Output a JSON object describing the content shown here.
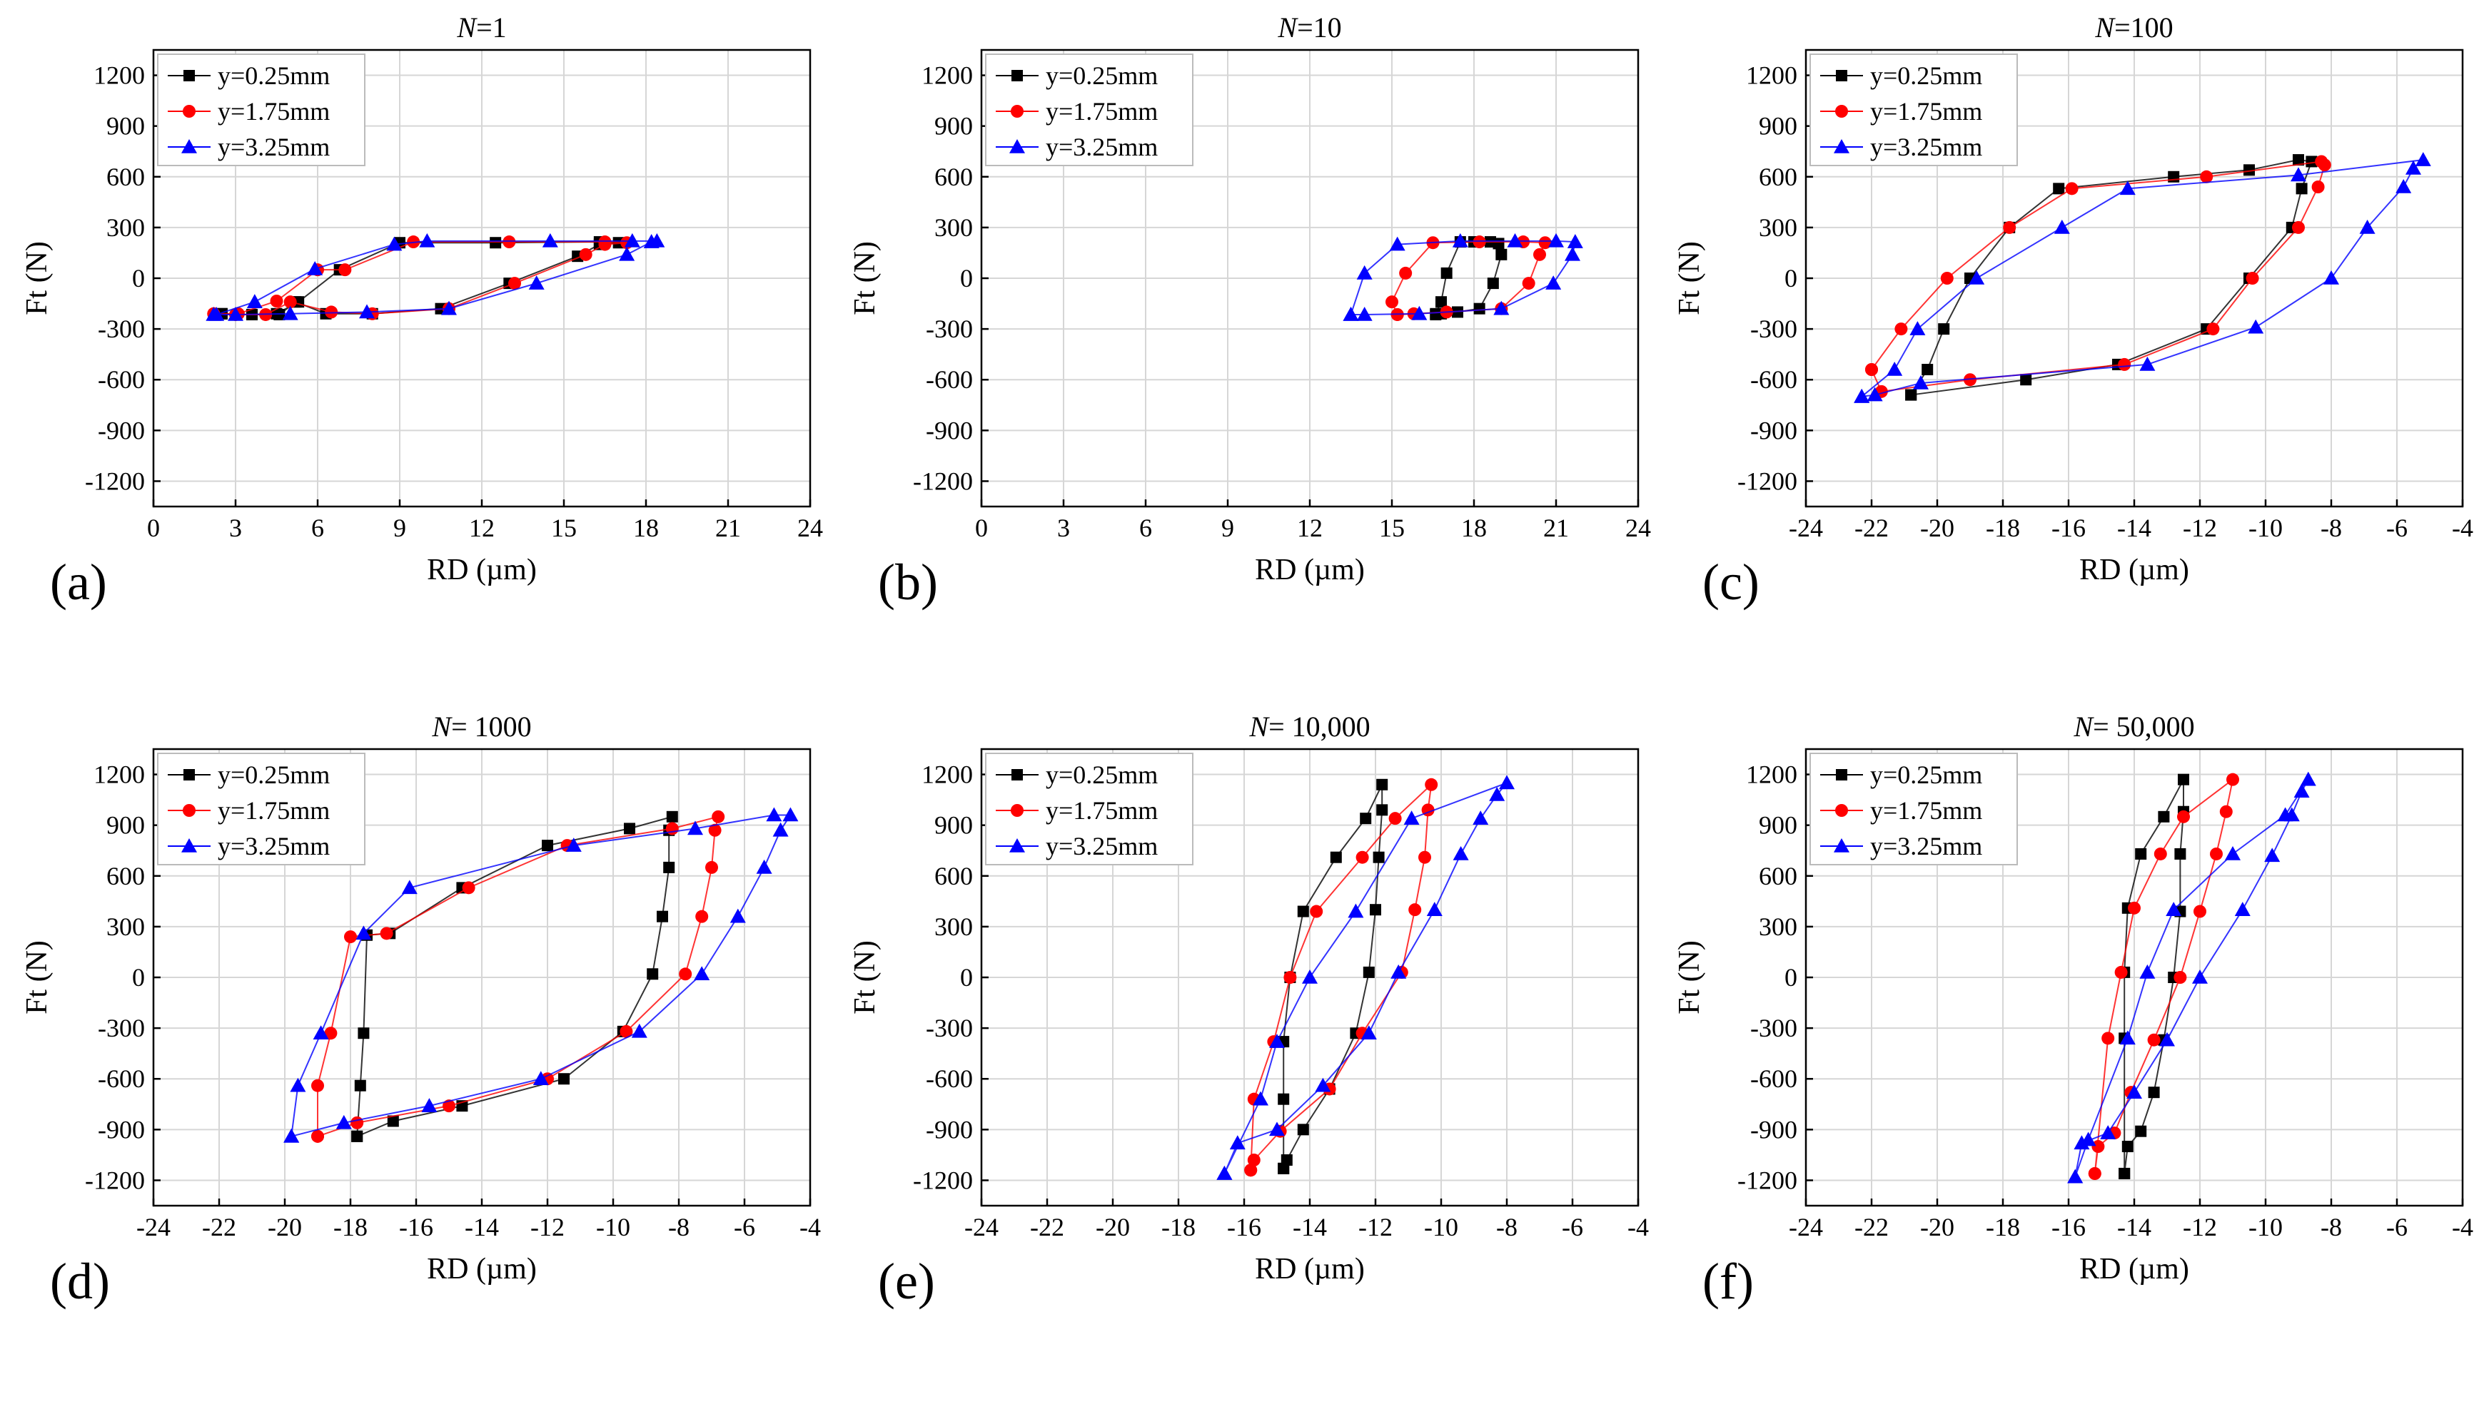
{
  "colors": {
    "series_0": "#000000",
    "series_1": "#ff0000",
    "series_2": "#0000ff"
  },
  "chart_data": [
    {
      "type": "line",
      "panel_label": "(a)",
      "title_var": "N",
      "title_rest": "=1",
      "xlabel": "RD (µm)",
      "ylabel": "Ft (N)",
      "xlim": [
        0,
        24
      ],
      "ylim": [
        -1350,
        1350
      ],
      "xticks": [
        "0",
        "3",
        "6",
        "9",
        "12",
        "15",
        "18",
        "21",
        "24"
      ],
      "yticks": [
        "-1200",
        "-900",
        "-600",
        "-300",
        "0",
        "300",
        "600",
        "900",
        "1200"
      ],
      "legend_position": "top-left",
      "grid": true,
      "series": [
        {
          "name": "y=0.25mm",
          "marker": "square",
          "x": [
            2.5,
            3.6,
            4.6,
            5.2,
            6.3,
            8.0,
            10.5,
            13.0,
            15.5,
            16.3,
            17.0,
            16.3,
            12.5,
            9.0,
            6.8,
            5.3,
            4.5,
            3.6,
            2.5
          ],
          "y": [
            -210,
            -215,
            -215,
            -140,
            -210,
            -210,
            -180,
            -30,
            130,
            200,
            210,
            215,
            210,
            210,
            50,
            -140,
            -210,
            -215,
            -210
          ]
        },
        {
          "name": "y=1.75mm",
          "marker": "circle",
          "x": [
            2.2,
            3.0,
            4.1,
            5.0,
            6.5,
            8.0,
            10.8,
            13.2,
            15.8,
            16.5,
            17.3,
            16.5,
            13.0,
            9.5,
            7.0,
            6.0,
            4.5,
            3.1,
            2.2
          ],
          "y": [
            -210,
            -215,
            -215,
            -140,
            -200,
            -210,
            -180,
            -30,
            140,
            200,
            210,
            215,
            215,
            215,
            50,
            50,
            -135,
            -210,
            -210
          ]
        },
        {
          "name": "y=3.25mm",
          "marker": "triangle",
          "x": [
            2.2,
            3.0,
            5.0,
            7.8,
            10.8,
            14.0,
            17.3,
            18.2,
            18.4,
            17.5,
            14.5,
            10.0,
            8.8,
            5.9,
            3.7,
            2.3
          ],
          "y": [
            -215,
            -215,
            -210,
            -200,
            -180,
            -30,
            140,
            215,
            220,
            220,
            220,
            220,
            200,
            55,
            -140,
            -215
          ]
        }
      ]
    },
    {
      "type": "line",
      "panel_label": "(b)",
      "title_var": "N",
      "title_rest": "=10",
      "xlabel": "RD (µm)",
      "ylabel": "Ft (N)",
      "xlim": [
        0,
        24
      ],
      "ylim": [
        -1350,
        1350
      ],
      "xticks": [
        "0",
        "3",
        "6",
        "9",
        "12",
        "15",
        "18",
        "21",
        "24"
      ],
      "yticks": [
        "-1200",
        "-900",
        "-600",
        "-300",
        "0",
        "300",
        "600",
        "900",
        "1200"
      ],
      "legend_position": "top-left",
      "grid": true,
      "series": [
        {
          "name": "y=0.25mm",
          "marker": "square",
          "x": [
            16.6,
            16.8,
            17.4,
            18.2,
            18.7,
            19.0,
            18.9,
            18.6,
            18.0,
            17.5,
            17.0,
            16.8,
            16.6
          ],
          "y": [
            -215,
            -210,
            -200,
            -180,
            -30,
            140,
            205,
            215,
            215,
            215,
            30,
            -140,
            -210
          ]
        },
        {
          "name": "y=1.75mm",
          "marker": "circle",
          "x": [
            15.2,
            15.8,
            17.0,
            19.0,
            20.0,
            20.4,
            20.6,
            19.8,
            18.2,
            16.5,
            15.5,
            15.0,
            15.2
          ],
          "y": [
            -215,
            -210,
            -200,
            -180,
            -30,
            140,
            210,
            215,
            215,
            210,
            30,
            -140,
            -215
          ]
        },
        {
          "name": "y=3.25mm",
          "marker": "triangle",
          "x": [
            13.5,
            14.0,
            16.0,
            19.0,
            20.9,
            21.6,
            21.7,
            21.0,
            19.5,
            17.5,
            15.2,
            14.0,
            13.5
          ],
          "y": [
            -215,
            -215,
            -210,
            -180,
            -30,
            140,
            215,
            220,
            220,
            220,
            200,
            30,
            -215
          ]
        }
      ]
    },
    {
      "type": "line",
      "panel_label": "(c)",
      "title_var": "N",
      "title_rest": "=100",
      "xlabel": "RD (µm)",
      "ylabel": "Ft (N)",
      "xlim": [
        -24,
        -4
      ],
      "ylim": [
        -1350,
        1350
      ],
      "xticks": [
        "-24",
        "-22",
        "-20",
        "-18",
        "-16",
        "-14",
        "-12",
        "-10",
        "-8",
        "-6",
        "-4"
      ],
      "yticks": [
        "-1200",
        "-900",
        "-600",
        "-300",
        "0",
        "300",
        "600",
        "900",
        "1200"
      ],
      "legend_position": "top-left",
      "grid": true,
      "series": [
        {
          "name": "y=0.25mm",
          "marker": "square",
          "x": [
            -20.8,
            -17.3,
            -14.5,
            -11.8,
            -10.5,
            -9.2,
            -8.9,
            -8.6,
            -9.0,
            -10.5,
            -12.8,
            -16.3,
            -17.8,
            -19.0,
            -19.8,
            -20.3,
            -20.8
          ],
          "y": [
            -690,
            -600,
            -510,
            -300,
            0,
            300,
            530,
            690,
            700,
            640,
            600,
            530,
            300,
            0,
            -300,
            -540,
            -690
          ]
        },
        {
          "name": "y=1.75mm",
          "marker": "circle",
          "x": [
            -22.0,
            -21.7,
            -19.0,
            -14.3,
            -11.6,
            -10.4,
            -9.0,
            -8.4,
            -8.2,
            -8.3,
            -11.8,
            -15.9,
            -17.8,
            -19.7,
            -21.1,
            -22.0
          ],
          "y": [
            -540,
            -670,
            -600,
            -510,
            -300,
            0,
            300,
            540,
            670,
            690,
            600,
            530,
            300,
            0,
            -300,
            -540
          ]
        },
        {
          "name": "y=3.25mm",
          "marker": "triangle",
          "x": [
            -22.3,
            -21.9,
            -20.5,
            -13.6,
            -10.3,
            -8.0,
            -6.9,
            -5.8,
            -5.5,
            -5.2,
            -9.0,
            -14.2,
            -16.2,
            -18.8,
            -20.6,
            -21.3,
            -22.3
          ],
          "y": [
            -700,
            -690,
            -620,
            -510,
            -290,
            0,
            300,
            540,
            650,
            700,
            610,
            530,
            300,
            0,
            -300,
            -540,
            -700
          ]
        }
      ]
    },
    {
      "type": "line",
      "panel_label": "(d)",
      "title_var": "N",
      "title_rest": "= 1000",
      "xlabel": "RD (µm)",
      "ylabel": "Ft (N)",
      "xlim": [
        -24,
        -4
      ],
      "ylim": [
        -1350,
        1350
      ],
      "xticks": [
        "-24",
        "-22",
        "-20",
        "-18",
        "-16",
        "-14",
        "-12",
        "-10",
        "-8",
        "-6",
        "-4"
      ],
      "yticks": [
        "-1200",
        "-900",
        "-600",
        "-300",
        "0",
        "300",
        "600",
        "900",
        "1200"
      ],
      "legend_position": "top-left",
      "grid": true,
      "series": [
        {
          "name": "y=0.25mm",
          "marker": "square",
          "x": [
            -17.8,
            -16.7,
            -14.6,
            -11.5,
            -9.7,
            -8.8,
            -8.5,
            -8.3,
            -8.3,
            -8.2,
            -9.5,
            -12.0,
            -14.6,
            -16.8,
            -17.5,
            -17.6,
            -17.7,
            -17.8
          ],
          "y": [
            -940,
            -850,
            -760,
            -600,
            -320,
            20,
            360,
            650,
            870,
            950,
            880,
            780,
            530,
            260,
            250,
            -330,
            -640,
            -940
          ]
        },
        {
          "name": "y=1.75mm",
          "marker": "circle",
          "x": [
            -19.0,
            -17.8,
            -15.0,
            -12.0,
            -9.6,
            -7.8,
            -7.3,
            -7.0,
            -6.9,
            -6.8,
            -8.2,
            -11.4,
            -14.4,
            -16.9,
            -18.0,
            -18.6,
            -19.0,
            -19.0
          ],
          "y": [
            -940,
            -860,
            -760,
            -600,
            -320,
            20,
            360,
            650,
            870,
            950,
            880,
            780,
            530,
            260,
            240,
            -330,
            -640,
            -940
          ]
        },
        {
          "name": "y=3.25mm",
          "marker": "triangle",
          "x": [
            -19.8,
            -18.2,
            -15.6,
            -12.2,
            -9.2,
            -7.3,
            -6.2,
            -5.4,
            -4.9,
            -4.6,
            -5.1,
            -7.5,
            -11.2,
            -16.2,
            -17.6,
            -18.9,
            -19.6,
            -19.8
          ],
          "y": [
            -940,
            -860,
            -760,
            -600,
            -320,
            20,
            360,
            650,
            870,
            960,
            960,
            880,
            780,
            530,
            260,
            -330,
            -640,
            -940
          ]
        }
      ]
    },
    {
      "type": "line",
      "panel_label": "(e)",
      "title_var": "N",
      "title_rest": "= 10,000",
      "xlabel": "RD (µm)",
      "ylabel": "Ft (N)",
      "xlim": [
        -24,
        -4
      ],
      "ylim": [
        -1350,
        1350
      ],
      "xticks": [
        "-24",
        "-22",
        "-20",
        "-18",
        "-16",
        "-14",
        "-12",
        "-10",
        "-8",
        "-6",
        "-4"
      ],
      "yticks": [
        "-1200",
        "-900",
        "-600",
        "-300",
        "0",
        "300",
        "600",
        "900",
        "1200"
      ],
      "legend_position": "top-left",
      "grid": true,
      "series": [
        {
          "name": "y=0.25mm",
          "marker": "square",
          "x": [
            -14.8,
            -14.7,
            -14.2,
            -13.4,
            -12.6,
            -12.2,
            -12.0,
            -11.9,
            -11.8,
            -11.8,
            -12.3,
            -13.2,
            -14.2,
            -14.6,
            -14.8,
            -14.8,
            -14.8
          ],
          "y": [
            -1130,
            -1080,
            -900,
            -660,
            -330,
            30,
            400,
            710,
            990,
            1140,
            940,
            710,
            390,
            0,
            -380,
            -720,
            -1130
          ]
        },
        {
          "name": "y=1.75mm",
          "marker": "circle",
          "x": [
            -15.8,
            -15.7,
            -14.9,
            -13.4,
            -12.4,
            -11.2,
            -10.8,
            -10.5,
            -10.4,
            -10.3,
            -11.4,
            -12.4,
            -13.8,
            -14.6,
            -15.1,
            -15.7,
            -15.8
          ],
          "y": [
            -1140,
            -1080,
            -910,
            -660,
            -330,
            30,
            400,
            710,
            990,
            1140,
            940,
            710,
            390,
            0,
            -380,
            -720,
            -1140
          ]
        },
        {
          "name": "y=3.25mm",
          "marker": "triangle",
          "x": [
            -16.6,
            -16.2,
            -15.0,
            -13.6,
            -12.2,
            -11.3,
            -10.2,
            -9.4,
            -8.8,
            -8.3,
            -8.0,
            -10.9,
            -12.6,
            -14.0,
            -15.0,
            -15.5,
            -16.6
          ],
          "y": [
            -1160,
            -980,
            -900,
            -640,
            -330,
            30,
            400,
            730,
            940,
            1080,
            1150,
            940,
            390,
            0,
            -380,
            -720,
            -1160
          ]
        }
      ]
    },
    {
      "type": "line",
      "panel_label": "(f)",
      "title_var": "N",
      "title_rest": "= 50,000",
      "xlabel": "RD (µm)",
      "ylabel": "Ft (N)",
      "xlim": [
        -24,
        -4
      ],
      "ylim": [
        -1350,
        1350
      ],
      "xticks": [
        "-24",
        "-22",
        "-20",
        "-18",
        "-16",
        "-14",
        "-12",
        "-10",
        "-8",
        "-6",
        "-4"
      ],
      "yticks": [
        "-1200",
        "-900",
        "-600",
        "-300",
        "0",
        "300",
        "600",
        "900",
        "1200"
      ],
      "legend_position": "top-left",
      "grid": true,
      "series": [
        {
          "name": "y=0.25mm",
          "marker": "square",
          "x": [
            -14.3,
            -14.2,
            -13.8,
            -13.4,
            -13.1,
            -12.8,
            -12.6,
            -12.6,
            -12.5,
            -12.5,
            -13.1,
            -13.8,
            -14.2,
            -14.3,
            -14.3,
            -14.3
          ],
          "y": [
            -1160,
            -1000,
            -910,
            -680,
            -370,
            0,
            390,
            730,
            980,
            1170,
            950,
            730,
            410,
            30,
            -360,
            -1160
          ]
        },
        {
          "name": "y=1.75mm",
          "marker": "circle",
          "x": [
            -15.2,
            -15.1,
            -14.6,
            -14.1,
            -13.4,
            -12.6,
            -12.0,
            -11.5,
            -11.2,
            -11.0,
            -12.5,
            -13.2,
            -14.0,
            -14.4,
            -14.8,
            -15.2
          ],
          "y": [
            -1160,
            -1000,
            -920,
            -680,
            -370,
            0,
            390,
            730,
            980,
            1170,
            950,
            730,
            410,
            30,
            -360,
            -1160
          ]
        },
        {
          "name": "y=3.25mm",
          "marker": "triangle",
          "x": [
            -15.8,
            -15.6,
            -14.8,
            -14.0,
            -13.0,
            -12.0,
            -10.7,
            -9.8,
            -9.2,
            -8.9,
            -8.7,
            -9.4,
            -11.0,
            -12.8,
            -13.6,
            -14.2,
            -15.4,
            -15.8
          ],
          "y": [
            -1180,
            -980,
            -920,
            -680,
            -370,
            0,
            400,
            720,
            960,
            1100,
            1170,
            960,
            730,
            400,
            30,
            -360,
            -960,
            -1180
          ]
        }
      ]
    }
  ]
}
